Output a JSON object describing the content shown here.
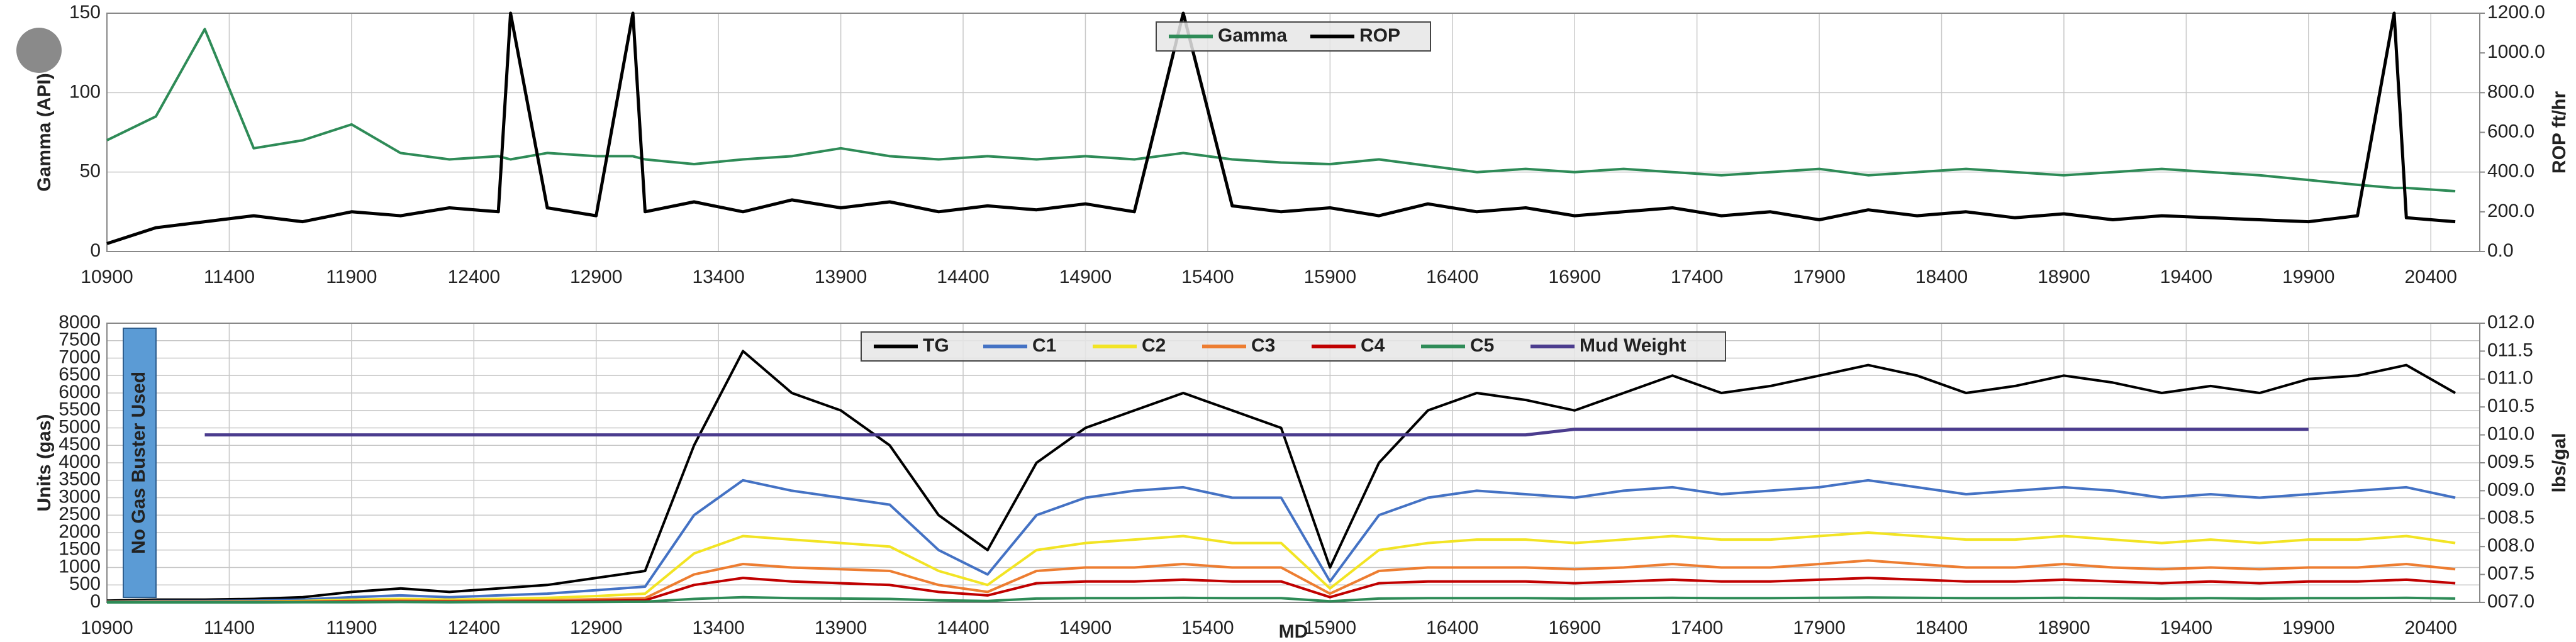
{
  "chart_data": [
    {
      "type": "line",
      "ylabel": "Gamma (API)",
      "y2label": "ROP ft/hr",
      "x": [
        10900,
        11100,
        11300,
        11500,
        11700,
        11900,
        12100,
        12300,
        12500,
        12550,
        12700,
        12900,
        13050,
        13100,
        13300,
        13500,
        13700,
        13900,
        14100,
        14300,
        14500,
        14700,
        14900,
        15100,
        15300,
        15500,
        15700,
        15900,
        16100,
        16300,
        16500,
        16700,
        16900,
        17100,
        17300,
        17500,
        17700,
        17900,
        18100,
        18300,
        18500,
        18700,
        18900,
        19100,
        19300,
        19500,
        19700,
        19900,
        20100,
        20250,
        20300,
        20500
      ],
      "series": [
        {
          "name": "Gamma",
          "color": "#2e8b57",
          "values": [
            70,
            85,
            140,
            65,
            70,
            80,
            62,
            58,
            60,
            58,
            62,
            60,
            60,
            58,
            55,
            58,
            60,
            65,
            60,
            58,
            60,
            58,
            60,
            58,
            62,
            58,
            56,
            55,
            58,
            54,
            50,
            52,
            50,
            52,
            50,
            48,
            50,
            52,
            48,
            50,
            52,
            50,
            48,
            50,
            52,
            50,
            48,
            45,
            42,
            40,
            40,
            38
          ]
        },
        {
          "name": "ROP",
          "color": "#000000",
          "axis": "y2",
          "values": [
            40,
            120,
            150,
            180,
            150,
            200,
            180,
            220,
            200,
            1200,
            220,
            180,
            1200,
            200,
            250,
            200,
            260,
            220,
            250,
            200,
            230,
            210,
            240,
            200,
            1200,
            230,
            200,
            220,
            180,
            240,
            200,
            220,
            180,
            200,
            220,
            180,
            200,
            160,
            210,
            180,
            200,
            170,
            190,
            160,
            180,
            170,
            160,
            150,
            180,
            1200,
            170,
            150
          ]
        }
      ],
      "xlim": [
        10900,
        20600
      ],
      "xticks": [
        10900,
        11400,
        11900,
        12400,
        12900,
        13400,
        13900,
        14400,
        14900,
        15400,
        15900,
        16400,
        16900,
        17400,
        17900,
        18400,
        18900,
        19400,
        19900,
        20400
      ],
      "ylim": [
        0,
        150
      ],
      "yticks": [
        0,
        50,
        100,
        150
      ],
      "y2lim": [
        0,
        1200
      ],
      "y2ticks": [
        {
          "value": 0,
          "label": "0.0"
        },
        {
          "value": 200,
          "label": "200.0"
        },
        {
          "value": 400,
          "label": "400.0"
        },
        {
          "value": 600,
          "label": "600.0"
        },
        {
          "value": 800,
          "label": "800.0"
        },
        {
          "value": 1000,
          "label": "1000.0"
        },
        {
          "value": 1200,
          "label": "1200.0"
        }
      ],
      "grid": true,
      "legend": "top-center"
    },
    {
      "type": "line",
      "ylabel": "Units (gas)",
      "y2label": "lbs/gal",
      "xlabel": "MD",
      "annotation": "No Gas Buster Used",
      "x": [
        10900,
        11100,
        11300,
        11500,
        11700,
        11900,
        12100,
        12300,
        12500,
        12700,
        12900,
        13100,
        13300,
        13500,
        13700,
        13900,
        14100,
        14300,
        14500,
        14700,
        14900,
        15100,
        15300,
        15500,
        15700,
        15900,
        16100,
        16300,
        16500,
        16700,
        16900,
        17100,
        17300,
        17500,
        17700,
        17900,
        18100,
        18300,
        18500,
        18700,
        18900,
        19100,
        19300,
        19500,
        19700,
        19900,
        20100,
        20300,
        20500
      ],
      "series": [
        {
          "name": "TG",
          "color": "#000000",
          "values": [
            50,
            80,
            80,
            100,
            150,
            300,
            400,
            300,
            400,
            500,
            700,
            900,
            4500,
            7200,
            6000,
            5500,
            4500,
            2500,
            1500,
            4000,
            5000,
            5500,
            6000,
            5500,
            5000,
            1000,
            4000,
            5500,
            6000,
            5800,
            5500,
            6000,
            6500,
            6000,
            6200,
            6500,
            6800,
            6500,
            6000,
            6200,
            6500,
            6300,
            6000,
            6200,
            6000,
            6400,
            6500,
            6800,
            6000
          ]
        },
        {
          "name": "C1",
          "color": "#4472c4",
          "values": [
            20,
            40,
            40,
            50,
            80,
            150,
            200,
            150,
            200,
            250,
            350,
            450,
            2500,
            3500,
            3200,
            3000,
            2800,
            1500,
            800,
            2500,
            3000,
            3200,
            3300,
            3000,
            3000,
            600,
            2500,
            3000,
            3200,
            3100,
            3000,
            3200,
            3300,
            3100,
            3200,
            3300,
            3500,
            3300,
            3100,
            3200,
            3300,
            3200,
            3000,
            3100,
            3000,
            3100,
            3200,
            3300,
            3000
          ]
        },
        {
          "name": "C2",
          "color": "#f2e424",
          "values": [
            10,
            20,
            20,
            25,
            40,
            80,
            100,
            80,
            100,
            130,
            180,
            250,
            1400,
            1900,
            1800,
            1700,
            1600,
            900,
            500,
            1500,
            1700,
            1800,
            1900,
            1700,
            1700,
            400,
            1500,
            1700,
            1800,
            1800,
            1700,
            1800,
            1900,
            1800,
            1800,
            1900,
            2000,
            1900,
            1800,
            1800,
            1900,
            1800,
            1700,
            1800,
            1700,
            1800,
            1800,
            1900,
            1700
          ]
        },
        {
          "name": "C3",
          "color": "#ed7d31",
          "values": [
            5,
            10,
            10,
            12,
            20,
            40,
            50,
            40,
            50,
            60,
            90,
            120,
            800,
            1100,
            1000,
            950,
            900,
            500,
            300,
            900,
            1000,
            1000,
            1100,
            1000,
            1000,
            250,
            900,
            1000,
            1000,
            1000,
            950,
            1000,
            1100,
            1000,
            1000,
            1100,
            1200,
            1100,
            1000,
            1000,
            1100,
            1000,
            950,
            1000,
            950,
            1000,
            1000,
            1100,
            950
          ]
        },
        {
          "name": "C4",
          "color": "#c00000",
          "values": [
            0,
            5,
            5,
            5,
            10,
            20,
            25,
            20,
            25,
            30,
            45,
            60,
            500,
            700,
            600,
            550,
            500,
            300,
            200,
            550,
            600,
            600,
            650,
            600,
            600,
            150,
            550,
            600,
            600,
            600,
            550,
            600,
            650,
            600,
            600,
            650,
            700,
            650,
            600,
            600,
            650,
            600,
            550,
            600,
            550,
            600,
            600,
            650,
            550
          ]
        },
        {
          "name": "C5",
          "color": "#2e8b57",
          "values": [
            0,
            0,
            0,
            0,
            5,
            5,
            10,
            5,
            10,
            10,
            15,
            20,
            100,
            150,
            120,
            110,
            100,
            60,
            40,
            110,
            120,
            120,
            130,
            120,
            120,
            30,
            110,
            120,
            120,
            120,
            110,
            120,
            130,
            120,
            120,
            130,
            140,
            130,
            120,
            120,
            130,
            120,
            110,
            120,
            110,
            120,
            120,
            130,
            110
          ]
        },
        {
          "name": "Mud Weight",
          "color": "#4b3c8e",
          "axis": "y2",
          "values": [
            null,
            null,
            10.0,
            10.0,
            10.0,
            10.0,
            10.0,
            10.0,
            10.0,
            10.0,
            10.0,
            10.0,
            10.0,
            10.0,
            10.0,
            10.0,
            10.0,
            10.0,
            10.0,
            10.0,
            10.0,
            10.0,
            10.0,
            10.0,
            10.0,
            10.0,
            10.0,
            10.0,
            10.0,
            10.0,
            10.1,
            10.1,
            10.1,
            10.1,
            10.1,
            10.1,
            10.1,
            10.1,
            10.1,
            10.1,
            10.1,
            10.1,
            10.1,
            10.1,
            10.1,
            10.1,
            null,
            null,
            null
          ]
        }
      ],
      "xlim": [
        10900,
        20600
      ],
      "xticks": [
        10900,
        11400,
        11900,
        12400,
        12900,
        13400,
        13900,
        14400,
        14900,
        15400,
        15900,
        16400,
        16900,
        17400,
        17900,
        18400,
        18900,
        19400,
        19900,
        20400
      ],
      "ylim": [
        0,
        8000
      ],
      "yticks": [
        0,
        500,
        1000,
        1500,
        2000,
        2500,
        3000,
        3500,
        4000,
        4500,
        5000,
        5500,
        6000,
        6500,
        7000,
        7500,
        8000
      ],
      "y2lim": [
        7.0,
        12.0
      ],
      "y2ticks": [
        {
          "value": 7.0,
          "label": "007.0"
        },
        {
          "value": 7.5,
          "label": "007.5"
        },
        {
          "value": 8.0,
          "label": "008.0"
        },
        {
          "value": 8.5,
          "label": "008.5"
        },
        {
          "value": 9.0,
          "label": "009.0"
        },
        {
          "value": 9.5,
          "label": "009.5"
        },
        {
          "value": 10.0,
          "label": "010.0"
        },
        {
          "value": 10.5,
          "label": "010.5"
        },
        {
          "value": 11.0,
          "label": "011.0"
        },
        {
          "value": 11.5,
          "label": "011.5"
        },
        {
          "value": 12.0,
          "label": "012.0"
        }
      ],
      "grid": true,
      "legend": "top-center"
    }
  ]
}
